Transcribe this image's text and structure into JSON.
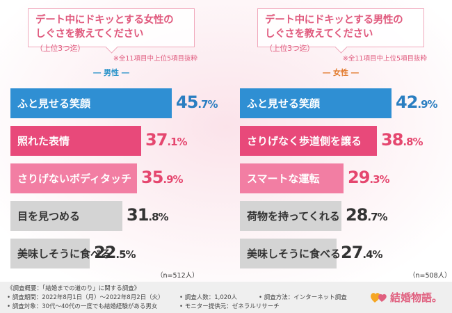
{
  "panels": [
    {
      "title_line1": "デート中にドキッとする女性の",
      "title_line2": "しぐさを教えてください",
      "title_paren": "（上位3つ迄）",
      "note": "※全11項目中上位5項目抜粋",
      "gender_label": "― 男性 ―",
      "count": "（n=512人）",
      "chart_data": {
        "type": "bar",
        "categories": [
          "ふと見せる笑顔",
          "照れた表情",
          "さりげないボディタッチ",
          "目を見つめる",
          "美味しそうに食べる"
        ],
        "values": [
          45.7,
          37.1,
          35.9,
          31.8,
          22.5
        ],
        "labels": [
          {
            "int": "45",
            "dec": ".7",
            "unit": "%"
          },
          {
            "int": "37",
            "dec": ".1",
            "unit": "%"
          },
          {
            "int": "35",
            "dec": ".9",
            "unit": "%"
          },
          {
            "int": "31",
            "dec": ".8",
            "unit": "%"
          },
          {
            "int": "22",
            "dec": ".5",
            "unit": "%"
          }
        ],
        "title": "デート中にドキッとする女性のしぐさを教えてください（上位3つ迄）",
        "xlim": [
          0,
          100
        ]
      }
    },
    {
      "title_line1": "デート中にドキッとする男性の",
      "title_line2": "しぐさを教えてください",
      "title_paren": "（上位3つ迄）",
      "note": "※全11項目中上位5項目抜粋",
      "gender_label": "― 女性 ―",
      "count": "（n=508人）",
      "chart_data": {
        "type": "bar",
        "categories": [
          "ふと見せる笑顔",
          "さりげなく歩道側を譲る",
          "スマートな運転",
          "荷物を持ってくれる",
          "美味しそうに食べる"
        ],
        "values": [
          42.9,
          38.8,
          29.3,
          28.7,
          27.4
        ],
        "labels": [
          {
            "int": "42",
            "dec": ".9",
            "unit": "%"
          },
          {
            "int": "38",
            "dec": ".8",
            "unit": "%"
          },
          {
            "int": "29",
            "dec": ".3",
            "unit": "%"
          },
          {
            "int": "28",
            "dec": ".7",
            "unit": "%"
          },
          {
            "int": "27",
            "dec": ".4",
            "unit": "%"
          }
        ],
        "title": "デート中にドキッとする男性のしぐさを教えてください（上位3つ迄）",
        "xlim": [
          0,
          100
        ]
      }
    }
  ],
  "footer": {
    "line0": "《調査概要：「結婚までの道のり」に関する調査》",
    "line1": "• 調査期間：2022年8月1日（月）～2022年8月2日（火）",
    "line2": "• 調査対象：30代～40代の一度でも結婚経験がある男女",
    "line3": "• 調査人数：1,020人",
    "line4": "• モニター提供元：ゼネラルリサーチ",
    "line5": "• 調査方法：インターネット調査"
  },
  "logo": {
    "text": "結婚物語。"
  },
  "colors": {
    "blue": "#2f8fd3",
    "pink_dark": "#e8497a",
    "pink_light": "#f27ea3",
    "gray": "#d4d4d4"
  }
}
